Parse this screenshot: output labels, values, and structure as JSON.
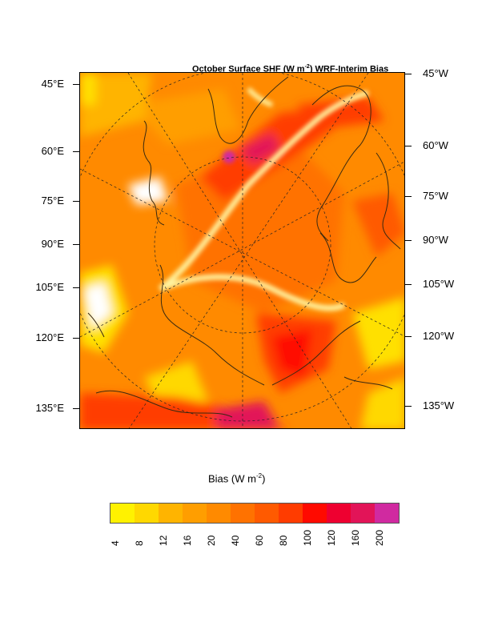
{
  "map": {
    "title_main": "October Surface SHF (W m",
    "title_sup": "-2",
    "title_rest": ") WRF-Interim Bias",
    "left_lat_labels": [
      "45°E",
      "60°E",
      "75°E",
      "90°E",
      "105°E",
      "120°E",
      "135°E"
    ],
    "right_lat_labels": [
      "45°W",
      "60°W",
      "75°W",
      "90°W",
      "105°W",
      "120°W",
      "135°W"
    ]
  },
  "legend": {
    "title_main": "Bias (W m",
    "title_sup": "-2",
    "title_rest": ")",
    "colors": [
      "#fff200",
      "#ffd800",
      "#ffb400",
      "#ff9e00",
      "#ff8a00",
      "#ff7200",
      "#ff5a00",
      "#ff3c00",
      "#ff0a00",
      "#ee0030",
      "#e21458",
      "#d02aa0"
    ],
    "labels": [
      "4",
      "8",
      "12",
      "16",
      "20",
      "40",
      "60",
      "80",
      "100",
      "120",
      "160",
      "200"
    ]
  }
}
